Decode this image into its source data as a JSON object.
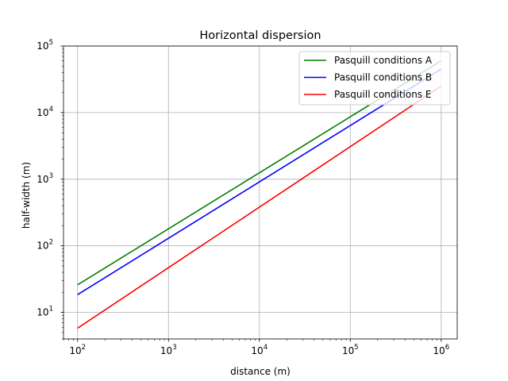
{
  "chart_data": {
    "type": "line",
    "title": "Horizontal dispersion",
    "xlabel": "distance (m)",
    "ylabel": "half-width (m)",
    "xscale": "log",
    "yscale": "log",
    "xlim": [
      70,
      1500000
    ],
    "ylim": [
      4,
      100000
    ],
    "grid": true,
    "legend_position": "top-right",
    "x_ticks": [
      {
        "base": "10",
        "exp": "2",
        "value": 100
      },
      {
        "base": "10",
        "exp": "3",
        "value": 1000
      },
      {
        "base": "10",
        "exp": "4",
        "value": 10000
      },
      {
        "base": "10",
        "exp": "5",
        "value": 100000
      },
      {
        "base": "10",
        "exp": "6",
        "value": 1000000
      }
    ],
    "y_ticks": [
      {
        "base": "10",
        "exp": "1",
        "value": 10
      },
      {
        "base": "10",
        "exp": "2",
        "value": 100
      },
      {
        "base": "10",
        "exp": "3",
        "value": 1000
      },
      {
        "base": "10",
        "exp": "4",
        "value": 10000
      },
      {
        "base": "10",
        "exp": "5",
        "value": 100000
      }
    ],
    "series": [
      {
        "name": "Pasquill conditions A",
        "color": "#008000",
        "x": [
          100,
          1000000
        ],
        "y": [
          26,
          60000
        ]
      },
      {
        "name": "Pasquill conditions B",
        "color": "#0000ff",
        "x": [
          100,
          1000000
        ],
        "y": [
          18.5,
          45000
        ]
      },
      {
        "name": "Pasquill conditions E",
        "color": "#ff0000",
        "x": [
          100,
          1000000
        ],
        "y": [
          5.8,
          25000
        ]
      }
    ]
  }
}
